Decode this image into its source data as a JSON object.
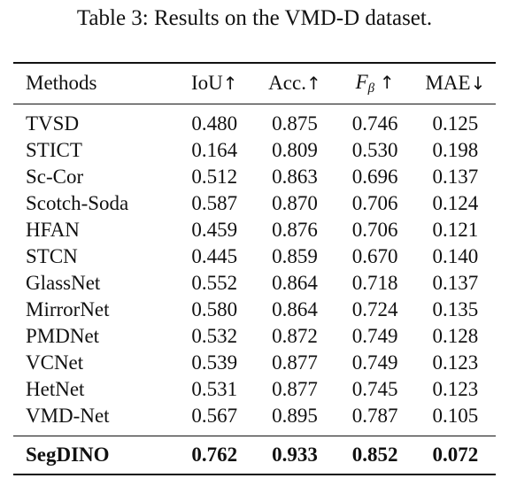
{
  "caption": "Table 3: Results on the VMD-D dataset.",
  "header": {
    "methods": "Methods",
    "iou": "IoU",
    "iou_arrow": "↑",
    "acc": "Acc.",
    "acc_arrow": "↑",
    "fbeta_main": "F",
    "fbeta_sub": "β",
    "fbeta_arrow": "↑",
    "mae": "MAE",
    "mae_arrow": "↓"
  },
  "rows": [
    {
      "method": "TVSD",
      "iou": "0.480",
      "acc": "0.875",
      "fbeta": "0.746",
      "mae": "0.125"
    },
    {
      "method": "STICT",
      "iou": "0.164",
      "acc": "0.809",
      "fbeta": "0.530",
      "mae": "0.198"
    },
    {
      "method": "Sc-Cor",
      "iou": "0.512",
      "acc": "0.863",
      "fbeta": "0.696",
      "mae": "0.137"
    },
    {
      "method": "Scotch-Soda",
      "iou": "0.587",
      "acc": "0.870",
      "fbeta": "0.706",
      "mae": "0.124"
    },
    {
      "method": "HFAN",
      "iou": "0.459",
      "acc": "0.876",
      "fbeta": "0.706",
      "mae": "0.121"
    },
    {
      "method": "STCN",
      "iou": "0.445",
      "acc": "0.859",
      "fbeta": "0.670",
      "mae": "0.140"
    },
    {
      "method": "GlassNet",
      "iou": "0.552",
      "acc": "0.864",
      "fbeta": "0.718",
      "mae": "0.137"
    },
    {
      "method": "MirrorNet",
      "iou": "0.580",
      "acc": "0.864",
      "fbeta": "0.724",
      "mae": "0.135"
    },
    {
      "method": "PMDNet",
      "iou": "0.532",
      "acc": "0.872",
      "fbeta": "0.749",
      "mae": "0.128"
    },
    {
      "method": "VCNet",
      "iou": "0.539",
      "acc": "0.877",
      "fbeta": "0.749",
      "mae": "0.123"
    },
    {
      "method": "HetNet",
      "iou": "0.531",
      "acc": "0.877",
      "fbeta": "0.745",
      "mae": "0.123"
    },
    {
      "method": "VMD-Net",
      "iou": "0.567",
      "acc": "0.895",
      "fbeta": "0.787",
      "mae": "0.105"
    }
  ],
  "best": {
    "method": "SegDINO",
    "iou": "0.762",
    "acc": "0.933",
    "fbeta": "0.852",
    "mae": "0.072"
  }
}
